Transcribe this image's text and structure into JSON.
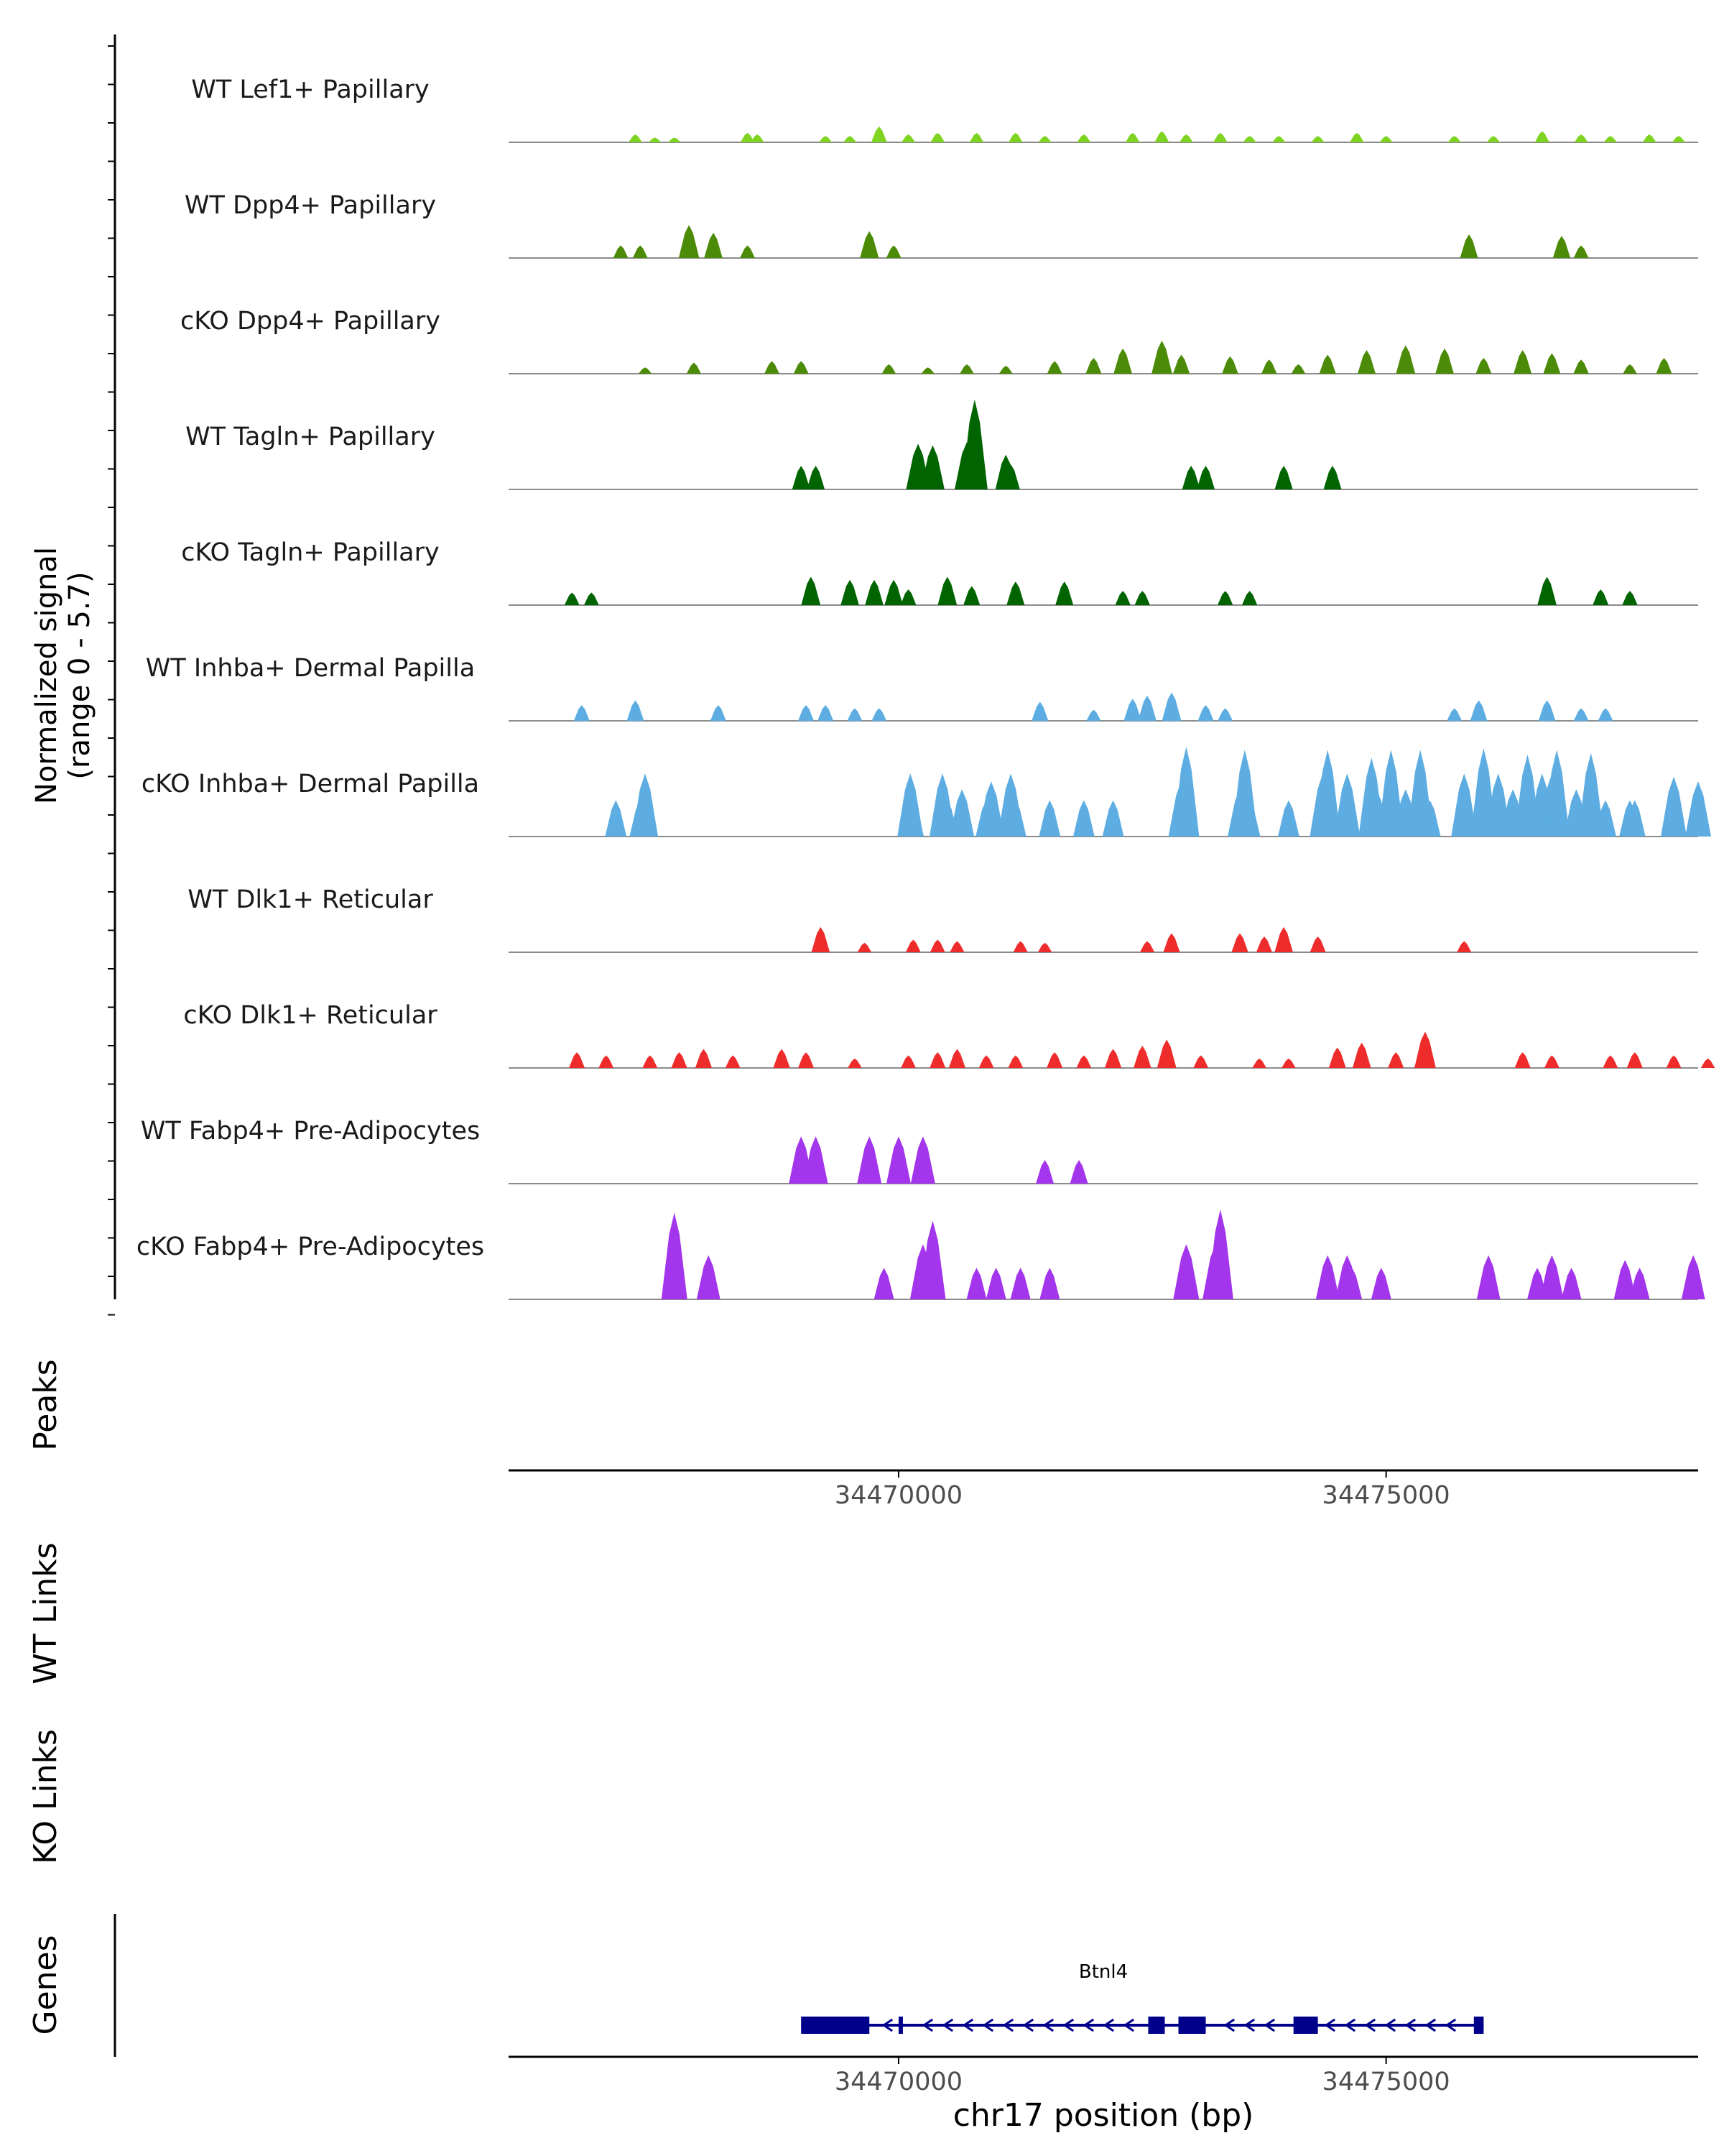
{
  "chart_data": {
    "type": "area",
    "chromosome": "chr17",
    "xlim": [
      34466000,
      34478200
    ],
    "x_ticks": [
      "34470000",
      "34475000"
    ],
    "x_tick_values": [
      34470000,
      34475000
    ],
    "xlabel": "chr17 position (bp)",
    "signal_axis": {
      "label_line1": "Normalized signal",
      "label_line2": "(range 0 - 5.7)",
      "range": [
        0,
        5.7
      ]
    },
    "section_labels": {
      "peaks": "Peaks",
      "wt_links": "WT Links",
      "ko_links": "KO Links",
      "genes": "Genes"
    },
    "tracks": [
      {
        "name": "WT Lef1+ Papillary",
        "color": "#7FD321",
        "peaks": [
          [
            34467300,
            0.5
          ],
          [
            34467500,
            0.3
          ],
          [
            34467700,
            0.3
          ],
          [
            34468450,
            0.6
          ],
          [
            34468550,
            0.5
          ],
          [
            34469250,
            0.4
          ],
          [
            34469500,
            0.4
          ],
          [
            34469800,
            1.0
          ],
          [
            34470100,
            0.5
          ],
          [
            34470400,
            0.6
          ],
          [
            34470800,
            0.6
          ],
          [
            34471200,
            0.6
          ],
          [
            34471500,
            0.4
          ],
          [
            34471900,
            0.5
          ],
          [
            34472400,
            0.6
          ],
          [
            34472700,
            0.7
          ],
          [
            34472950,
            0.5
          ],
          [
            34473300,
            0.6
          ],
          [
            34473600,
            0.4
          ],
          [
            34473900,
            0.4
          ],
          [
            34474300,
            0.4
          ],
          [
            34474700,
            0.6
          ],
          [
            34475000,
            0.4
          ],
          [
            34475700,
            0.4
          ],
          [
            34476100,
            0.4
          ],
          [
            34476600,
            0.7
          ],
          [
            34477000,
            0.5
          ],
          [
            34477300,
            0.4
          ],
          [
            34477700,
            0.5
          ],
          [
            34478000,
            0.4
          ]
        ]
      },
      {
        "name": "WT Dpp4+ Papillary",
        "color": "#4B8B07",
        "peaks": [
          [
            34467150,
            0.8
          ],
          [
            34467350,
            0.8
          ],
          [
            34467850,
            2.1
          ],
          [
            34468100,
            1.6
          ],
          [
            34468450,
            0.8
          ],
          [
            34469700,
            1.7
          ],
          [
            34469950,
            0.8
          ],
          [
            34475850,
            1.5
          ],
          [
            34476800,
            1.4
          ],
          [
            34477000,
            0.8
          ]
        ]
      },
      {
        "name": "cKO Dpp4+ Papillary",
        "color": "#4B8B07",
        "peaks": [
          [
            34467400,
            0.4
          ],
          [
            34467900,
            0.7
          ],
          [
            34468700,
            0.8
          ],
          [
            34469000,
            0.8
          ],
          [
            34469900,
            0.6
          ],
          [
            34470300,
            0.4
          ],
          [
            34470700,
            0.6
          ],
          [
            34471100,
            0.5
          ],
          [
            34471600,
            0.8
          ],
          [
            34472000,
            1.0
          ],
          [
            34472300,
            1.6
          ],
          [
            34472700,
            2.1
          ],
          [
            34472900,
            1.2
          ],
          [
            34473400,
            1.1
          ],
          [
            34473800,
            0.9
          ],
          [
            34474100,
            0.6
          ],
          [
            34474400,
            1.2
          ],
          [
            34474800,
            1.5
          ],
          [
            34475200,
            1.8
          ],
          [
            34475600,
            1.6
          ],
          [
            34476000,
            1.0
          ],
          [
            34476400,
            1.5
          ],
          [
            34476700,
            1.3
          ],
          [
            34477000,
            0.9
          ],
          [
            34477500,
            0.6
          ],
          [
            34477850,
            1.0
          ]
        ]
      },
      {
        "name": "WT Tagln+ Papillary",
        "color": "#006400",
        "peaks": [
          [
            34469000,
            1.5
          ],
          [
            34469150,
            1.5
          ],
          [
            34470200,
            2.9
          ],
          [
            34470350,
            2.8
          ],
          [
            34470700,
            3.0
          ],
          [
            34470780,
            5.7
          ],
          [
            34471100,
            2.2
          ],
          [
            34471150,
            1.6
          ],
          [
            34473000,
            1.5
          ],
          [
            34473150,
            1.5
          ],
          [
            34473950,
            1.5
          ],
          [
            34474450,
            1.5
          ]
        ]
      },
      {
        "name": "cKO Tagln+ Papillary",
        "color": "#006400",
        "peaks": [
          [
            34466650,
            0.8
          ],
          [
            34466850,
            0.8
          ],
          [
            34469100,
            1.8
          ],
          [
            34469500,
            1.6
          ],
          [
            34469750,
            1.6
          ],
          [
            34469950,
            1.6
          ],
          [
            34470100,
            1.0
          ],
          [
            34470500,
            1.8
          ],
          [
            34470750,
            1.2
          ],
          [
            34471200,
            1.5
          ],
          [
            34471700,
            1.5
          ],
          [
            34472300,
            0.9
          ],
          [
            34472500,
            0.9
          ],
          [
            34473350,
            0.9
          ],
          [
            34473600,
            0.9
          ],
          [
            34476650,
            1.8
          ],
          [
            34477200,
            1.0
          ],
          [
            34477500,
            0.9
          ]
        ]
      },
      {
        "name": "WT Inhba+ Dermal Papilla",
        "color": "#5DADE2",
        "peaks": [
          [
            34466750,
            1.0
          ],
          [
            34467300,
            1.3
          ],
          [
            34468150,
            1.0
          ],
          [
            34469050,
            1.0
          ],
          [
            34469250,
            1.0
          ],
          [
            34469550,
            0.8
          ],
          [
            34469800,
            0.8
          ],
          [
            34471450,
            1.2
          ],
          [
            34472000,
            0.7
          ],
          [
            34472400,
            1.4
          ],
          [
            34472550,
            1.6
          ],
          [
            34472800,
            1.8
          ],
          [
            34473150,
            1.0
          ],
          [
            34473350,
            0.8
          ],
          [
            34475700,
            0.8
          ],
          [
            34475950,
            1.3
          ],
          [
            34476650,
            1.3
          ],
          [
            34477000,
            0.8
          ],
          [
            34477250,
            0.8
          ]
        ]
      },
      {
        "name": "cKO Inhba+ Dermal Papilla",
        "color": "#5DADE2",
        "peaks": [
          [
            34467100,
            2.3
          ],
          [
            34467350,
            2.3
          ],
          [
            34467400,
            4.0
          ],
          [
            34470120,
            4.0
          ],
          [
            34470150,
            2.3
          ],
          [
            34470450,
            4.0
          ],
          [
            34470500,
            2.3
          ],
          [
            34470650,
            3.0
          ],
          [
            34470900,
            2.3
          ],
          [
            34470950,
            3.5
          ],
          [
            34471150,
            4.0
          ],
          [
            34471200,
            2.3
          ],
          [
            34471550,
            2.3
          ],
          [
            34471900,
            2.3
          ],
          [
            34472200,
            2.3
          ],
          [
            34472900,
            3.5
          ],
          [
            34472950,
            5.7
          ],
          [
            34473500,
            3.0
          ],
          [
            34473550,
            5.5
          ],
          [
            34473600,
            2.3
          ],
          [
            34474000,
            2.3
          ],
          [
            34474350,
            4.0
          ],
          [
            34474400,
            5.5
          ],
          [
            34474600,
            4.0
          ],
          [
            34474850,
            5.0
          ],
          [
            34474900,
            3.0
          ],
          [
            34475050,
            5.5
          ],
          [
            34475200,
            3.0
          ],
          [
            34475350,
            5.5
          ],
          [
            34475450,
            2.3
          ],
          [
            34475800,
            4.0
          ],
          [
            34476000,
            5.6
          ],
          [
            34476150,
            4.0
          ],
          [
            34476300,
            3.0
          ],
          [
            34476450,
            5.2
          ],
          [
            34476600,
            4.0
          ],
          [
            34476700,
            4.0
          ],
          [
            34476750,
            5.5
          ],
          [
            34476950,
            3.0
          ],
          [
            34477100,
            4.0
          ],
          [
            34477100,
            5.3
          ],
          [
            34477250,
            2.3
          ],
          [
            34477550,
            2.3
          ],
          [
            34477500,
            2.3
          ],
          [
            34477950,
            3.8
          ],
          [
            34478200,
            3.5
          ]
        ]
      },
      {
        "name": "WT Dlk1+ Reticular",
        "color": "#EE2C2C",
        "peaks": [
          [
            34469200,
            1.6
          ],
          [
            34469650,
            0.6
          ],
          [
            34470150,
            0.8
          ],
          [
            34470400,
            0.8
          ],
          [
            34470600,
            0.7
          ],
          [
            34471250,
            0.7
          ],
          [
            34471500,
            0.6
          ],
          [
            34472550,
            0.7
          ],
          [
            34472800,
            1.2
          ],
          [
            34473500,
            1.2
          ],
          [
            34473750,
            1.0
          ],
          [
            34473950,
            1.6
          ],
          [
            34474300,
            1.0
          ],
          [
            34475800,
            0.7
          ]
        ]
      },
      {
        "name": "cKO Dlk1+ Reticular",
        "color": "#EE2C2C",
        "peaks": [
          [
            34466700,
            1.0
          ],
          [
            34467000,
            0.8
          ],
          [
            34467450,
            0.8
          ],
          [
            34467750,
            1.0
          ],
          [
            34468000,
            1.2
          ],
          [
            34468300,
            0.8
          ],
          [
            34468800,
            1.2
          ],
          [
            34469050,
            1.0
          ],
          [
            34469550,
            0.6
          ],
          [
            34470100,
            0.8
          ],
          [
            34470400,
            1.0
          ],
          [
            34470600,
            1.2
          ],
          [
            34470900,
            0.8
          ],
          [
            34471200,
            0.8
          ],
          [
            34471600,
            1.0
          ],
          [
            34471900,
            0.8
          ],
          [
            34472200,
            1.2
          ],
          [
            34472500,
            1.4
          ],
          [
            34472750,
            1.8
          ],
          [
            34473100,
            0.8
          ],
          [
            34473700,
            0.6
          ],
          [
            34474000,
            0.6
          ],
          [
            34474500,
            1.3
          ],
          [
            34474750,
            1.6
          ],
          [
            34475100,
            1.0
          ],
          [
            34475400,
            2.3
          ],
          [
            34476400,
            1.0
          ],
          [
            34476700,
            0.8
          ],
          [
            34477300,
            0.8
          ],
          [
            34477550,
            1.0
          ],
          [
            34477950,
            0.8
          ],
          [
            34478300,
            0.6
          ]
        ]
      },
      {
        "name": "WT Fabp4+ Pre-Adipocytes",
        "color": "#A335ED",
        "peaks": [
          [
            34469000,
            3.0
          ],
          [
            34469150,
            3.0
          ],
          [
            34469700,
            3.0
          ],
          [
            34470000,
            3.0
          ],
          [
            34470250,
            3.0
          ],
          [
            34471500,
            1.5
          ],
          [
            34471850,
            1.5
          ]
        ]
      },
      {
        "name": "cKO Fabp4+ Pre-Adipocytes",
        "color": "#A335ED",
        "peaks": [
          [
            34467700,
            5.5
          ],
          [
            34468050,
            2.8
          ],
          [
            34469850,
            2.0
          ],
          [
            34470250,
            3.5
          ],
          [
            34470350,
            5.0
          ],
          [
            34470800,
            2.0
          ],
          [
            34471000,
            2.0
          ],
          [
            34471250,
            2.0
          ],
          [
            34471550,
            2.0
          ],
          [
            34472950,
            3.5
          ],
          [
            34473250,
            3.5
          ],
          [
            34473300,
            5.7
          ],
          [
            34474400,
            2.8
          ],
          [
            34474600,
            2.8
          ],
          [
            34474650,
            2.0
          ],
          [
            34474950,
            2.0
          ],
          [
            34476050,
            2.8
          ],
          [
            34476550,
            2.0
          ],
          [
            34476700,
            2.8
          ],
          [
            34476900,
            2.0
          ],
          [
            34477450,
            2.5
          ],
          [
            34477600,
            2.0
          ],
          [
            34478150,
            2.8
          ]
        ]
      }
    ],
    "gene": {
      "name": "Btnl4",
      "strand": "-",
      "start": 34469000,
      "end": 34476000,
      "exons": [
        [
          34469000,
          34469700
        ],
        [
          34470000,
          34470040
        ],
        [
          34472560,
          34472730
        ],
        [
          34472870,
          34473150
        ],
        [
          34474050,
          34474300
        ],
        [
          34475900,
          34476000
        ]
      ]
    }
  }
}
